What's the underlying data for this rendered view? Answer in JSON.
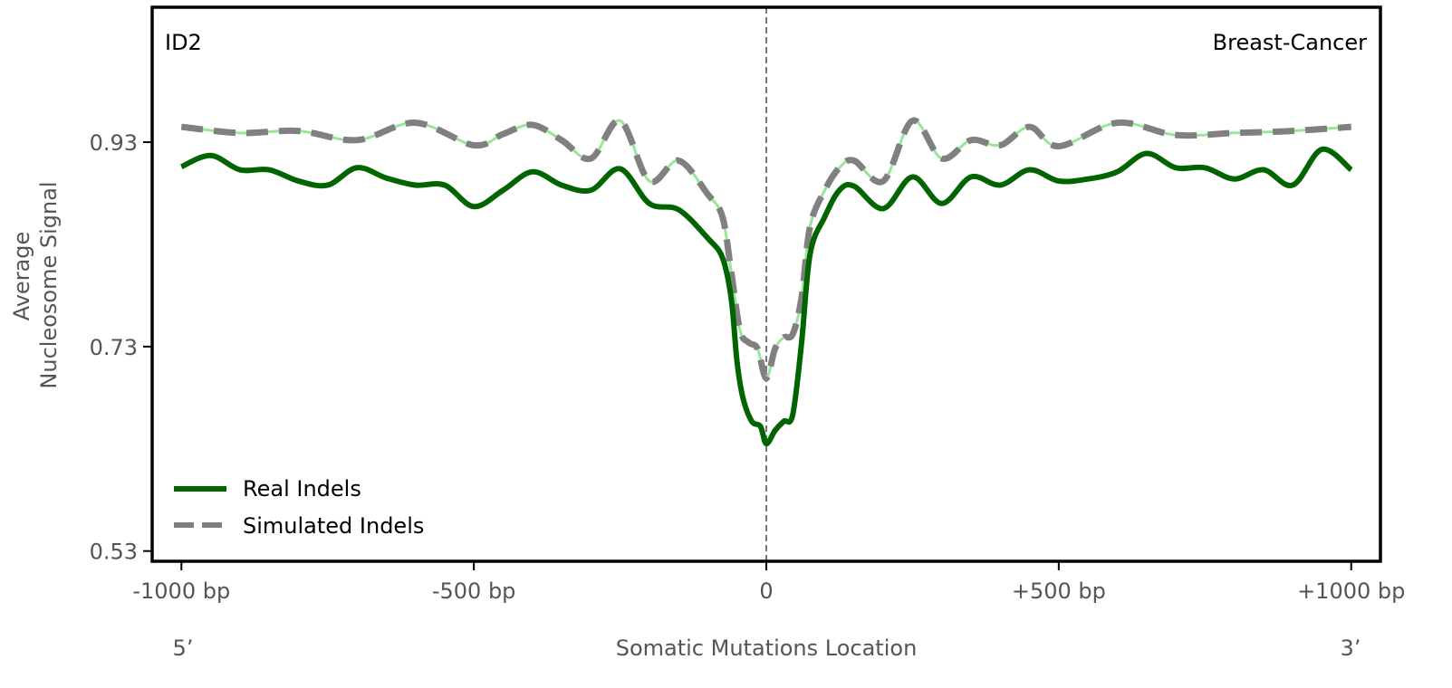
{
  "chart_data": {
    "type": "line",
    "title_left": "ID2",
    "title_right": "Breast-Cancer",
    "xlabel": "Somatic Mutations Location",
    "ylabel": [
      "Average",
      "Nucleosome Signal"
    ],
    "x_end_labels": {
      "left": "5’",
      "right": "3’"
    },
    "xlim": [
      -1050,
      1050
    ],
    "ylim": [
      0.52,
      1.062
    ],
    "xticks": [
      {
        "value": -1000,
        "label": "-1000 bp"
      },
      {
        "value": -500,
        "label": "-500 bp"
      },
      {
        "value": 0,
        "label": "0"
      },
      {
        "value": 500,
        "label": "+500 bp"
      },
      {
        "value": 1000,
        "label": "+1000 bp"
      }
    ],
    "yticks": [
      {
        "value": 0.53,
        "label": "0.53"
      },
      {
        "value": 0.73,
        "label": "0.73"
      },
      {
        "value": 0.93,
        "label": "0.93"
      }
    ],
    "vline": 0,
    "legend_position": "bottom-left",
    "series": [
      {
        "name": "Real Indels",
        "color": "#006400",
        "style": "solid",
        "x": [
          -1000,
          -950,
          -900,
          -850,
          -800,
          -750,
          -700,
          -650,
          -600,
          -550,
          -500,
          -450,
          -400,
          -350,
          -300,
          -250,
          -200,
          -150,
          -100,
          -75,
          -60,
          -50,
          -40,
          -25,
          -10,
          0,
          15,
          30,
          45,
          60,
          75,
          100,
          125,
          150,
          200,
          250,
          300,
          350,
          400,
          450,
          500,
          550,
          600,
          650,
          700,
          750,
          800,
          850,
          900,
          950,
          1000
        ],
        "y": [
          0.906,
          0.917,
          0.903,
          0.903,
          0.892,
          0.888,
          0.905,
          0.895,
          0.888,
          0.888,
          0.867,
          0.883,
          0.901,
          0.888,
          0.883,
          0.904,
          0.87,
          0.864,
          0.836,
          0.817,
          0.777,
          0.715,
          0.68,
          0.657,
          0.652,
          0.635,
          0.648,
          0.657,
          0.663,
          0.732,
          0.821,
          0.857,
          0.883,
          0.887,
          0.865,
          0.896,
          0.87,
          0.896,
          0.888,
          0.903,
          0.892,
          0.894,
          0.901,
          0.919,
          0.905,
          0.905,
          0.894,
          0.903,
          0.888,
          0.923,
          0.903
        ]
      },
      {
        "name": "Simulated Indels",
        "color": "#808080",
        "underlay_color": "#98e698",
        "style": "dashed",
        "x": [
          -1000,
          -900,
          -800,
          -700,
          -600,
          -500,
          -450,
          -400,
          -350,
          -300,
          -250,
          -200,
          -150,
          -100,
          -75,
          -60,
          -45,
          -30,
          -15,
          0,
          15,
          30,
          45,
          60,
          75,
          100,
          125,
          150,
          200,
          250,
          300,
          350,
          400,
          450,
          500,
          600,
          700,
          800,
          900,
          1000
        ],
        "y": [
          0.945,
          0.939,
          0.941,
          0.932,
          0.949,
          0.927,
          0.938,
          0.947,
          0.932,
          0.914,
          0.951,
          0.892,
          0.912,
          0.879,
          0.857,
          0.803,
          0.746,
          0.734,
          0.728,
          0.699,
          0.728,
          0.739,
          0.742,
          0.777,
          0.848,
          0.883,
          0.905,
          0.912,
          0.892,
          0.951,
          0.914,
          0.932,
          0.927,
          0.945,
          0.926,
          0.949,
          0.937,
          0.939,
          0.941,
          0.945
        ]
      }
    ]
  }
}
